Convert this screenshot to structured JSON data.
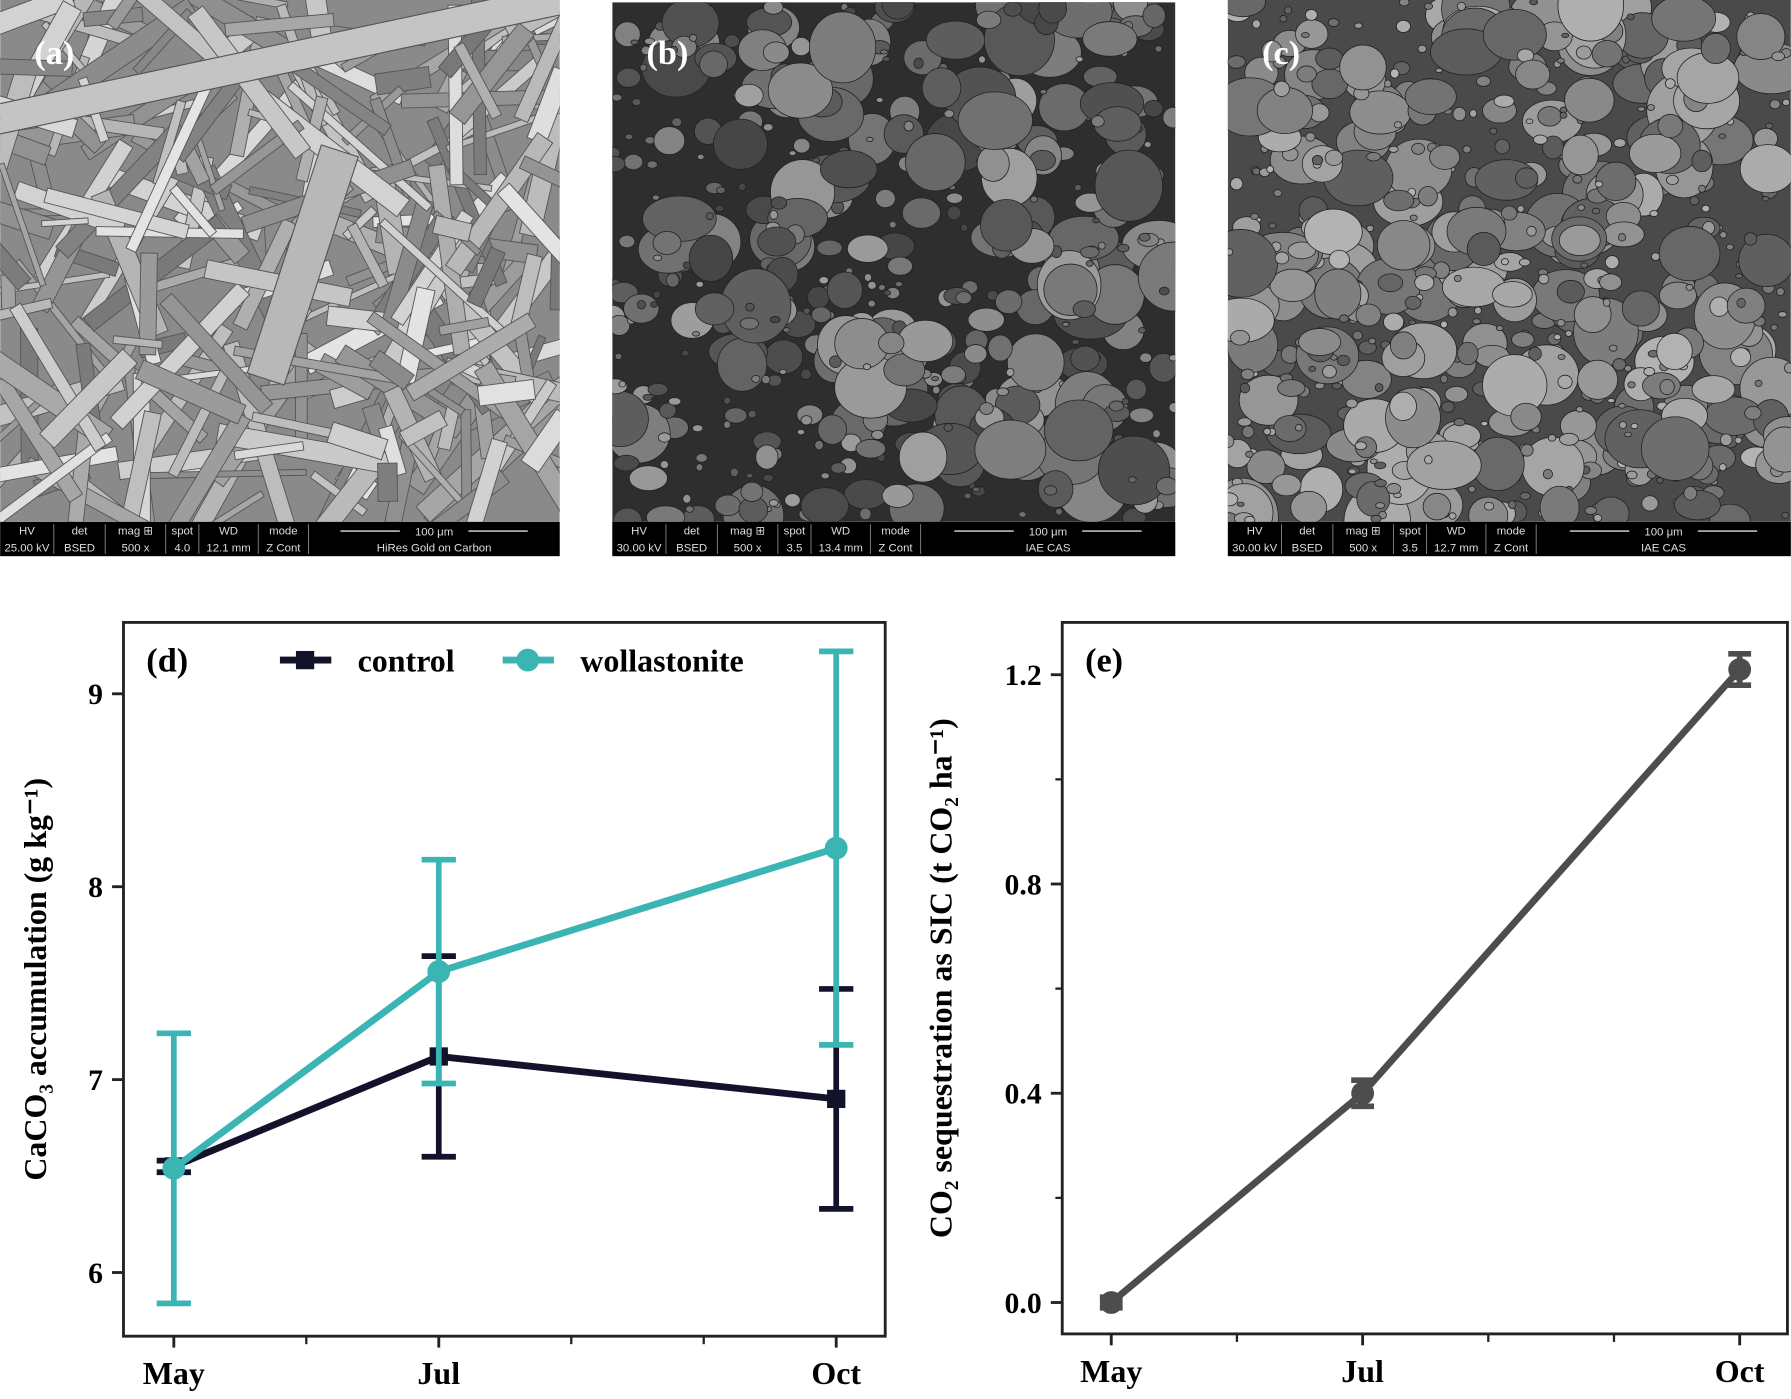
{
  "images": [
    {
      "label": "(a)",
      "info_headers": [
        "HV",
        "det",
        "mag ⊞",
        "spot",
        "WD",
        "mode"
      ],
      "info_values": [
        "25.00 kV",
        "BSED",
        "500 x",
        "4.0",
        "12.1 mm",
        "Z Cont"
      ],
      "scale": "100 μm",
      "note": "HiRes Gold on Carbon"
    },
    {
      "label": "(b)",
      "info_headers": [
        "HV",
        "det",
        "mag ⊞",
        "spot",
        "WD",
        "mode"
      ],
      "info_values": [
        "30.00 kV",
        "BSED",
        "500 x",
        "3.5",
        "13.4 mm",
        "Z Cont"
      ],
      "scale": "100 μm",
      "note": "IAE CAS"
    },
    {
      "label": "(c)",
      "info_headers": [
        "HV",
        "det",
        "mag ⊞",
        "spot",
        "WD",
        "mode"
      ],
      "info_values": [
        "30.00 kV",
        "BSED",
        "500 x",
        "3.5",
        "12.7 mm",
        "Z Cont"
      ],
      "scale": "100 μm",
      "note": "IAE CAS"
    }
  ],
  "chart_data": [
    {
      "type": "line",
      "panel_label": "(d)",
      "ylabel": "CaCO₃ accumulation (g kg⁻¹)",
      "x": [
        5,
        7,
        10
      ],
      "series": [
        {
          "name": "control",
          "color": "#12122b",
          "marker": "square",
          "values": [
            6.55,
            7.12,
            6.9
          ],
          "errors": [
            0.03,
            0.52,
            0.57
          ]
        },
        {
          "name": "wollastonite",
          "color": "#3bb4b4",
          "marker": "circle",
          "values": [
            6.54,
            7.56,
            8.2
          ],
          "errors": [
            0.7,
            0.58,
            1.02
          ]
        }
      ],
      "xlim": [
        4.62,
        10.37
      ],
      "xticks": [
        {
          "value": 5,
          "label": "May"
        },
        {
          "value": 7,
          "label": "Jul"
        },
        {
          "value": 10,
          "label": "Oct"
        }
      ],
      "xticks_minor": [
        6,
        8,
        9
      ],
      "ylim": [
        5.67,
        9.37
      ],
      "yticks": [
        6,
        7,
        8,
        9
      ],
      "legend": "top"
    },
    {
      "type": "line",
      "panel_label": "(e)",
      "ylabel": "CO₂ sequestration as SIC (t CO₂ ha⁻¹)",
      "x": [
        5,
        7,
        10
      ],
      "series": [
        {
          "color": "#4d4d4d",
          "marker": "circle",
          "values": [
            0,
            0.4,
            1.21
          ],
          "errors": [
            0.01,
            0.025,
            0.03
          ]
        }
      ],
      "xlim": [
        4.61,
        10.38
      ],
      "xticks": [
        {
          "value": 5,
          "label": "May"
        },
        {
          "value": 7,
          "label": "Jul"
        },
        {
          "value": 10,
          "label": "Oct"
        }
      ],
      "xticks_minor": [
        6,
        8,
        9
      ],
      "ylim": [
        -0.06,
        1.3
      ],
      "yticks": [
        {
          "value": 0,
          "label": "0.0"
        },
        {
          "value": 0.4,
          "label": "0.4"
        },
        {
          "value": 0.8,
          "label": "0.8"
        },
        {
          "value": 1.2,
          "label": "1.2"
        }
      ],
      "yticks_minor": [
        0.2,
        0.6,
        1.0
      ]
    }
  ]
}
